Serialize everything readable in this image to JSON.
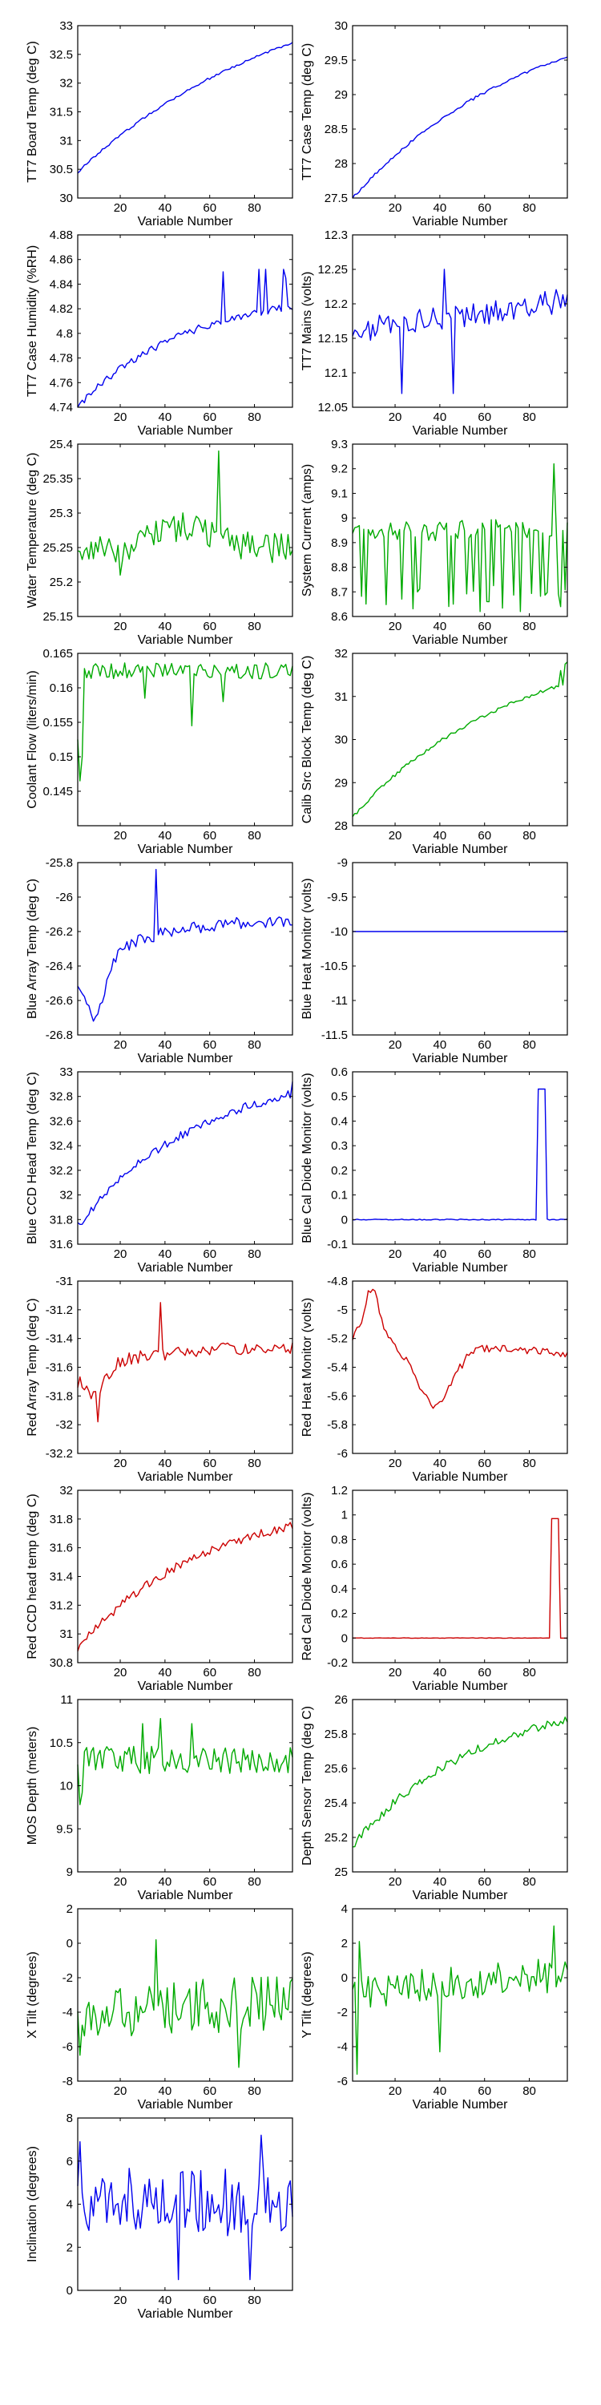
{
  "chart_data": [
    {
      "type": "line",
      "xlabel": "Variable Number",
      "ylabel": "TT7 Board Temp (deg C)",
      "xlim": [
        1,
        97
      ],
      "ylim": [
        30,
        33
      ],
      "xticks": [
        20,
        40,
        60,
        80
      ],
      "yticks": [
        30,
        30.5,
        31,
        31.5,
        32,
        32.5,
        33
      ],
      "series": [
        {
          "color": "#0000ee",
          "shape": "log",
          "start": 30.45,
          "end": 32.7,
          "k": 0.6,
          "noise": 0.02,
          "seed": 1
        }
      ]
    },
    {
      "type": "line",
      "xlabel": "Variable Number",
      "ylabel": "TT7 Case Temp (deg C)",
      "xlim": [
        1,
        97
      ],
      "ylim": [
        27.5,
        30
      ],
      "xticks": [
        20,
        40,
        60,
        80
      ],
      "yticks": [
        27.5,
        28,
        28.5,
        29,
        29.5,
        30
      ],
      "series": [
        {
          "color": "#0000ee",
          "shape": "log",
          "start": 27.5,
          "end": 29.55,
          "k": 0.5,
          "noise": 0.02,
          "seed": 2
        }
      ]
    },
    {
      "type": "line",
      "xlabel": "Variable Number",
      "ylabel": "TT7 Case Humidity (%RH)",
      "xlim": [
        1,
        97
      ],
      "ylim": [
        4.74,
        4.88
      ],
      "xticks": [
        20,
        40,
        60,
        80
      ],
      "yticks": [
        4.74,
        4.76,
        4.78,
        4.8,
        4.82,
        4.84,
        4.86,
        4.88
      ],
      "series": [
        {
          "color": "#0000ee",
          "shape": "log",
          "start": 4.74,
          "end": 4.822,
          "k": 0.3,
          "noise": 0.003,
          "seed": 3,
          "spikes": [
            [
              66,
              4.85
            ],
            [
              82,
              4.852
            ],
            [
              85,
              4.852
            ],
            [
              93,
              4.852
            ],
            [
              94,
              4.845
            ]
          ]
        }
      ]
    },
    {
      "type": "line",
      "xlabel": "Variable Number",
      "ylabel": "TT7 Mains  (volts)",
      "xlim": [
        1,
        97
      ],
      "ylim": [
        12.05,
        12.3
      ],
      "xticks": [
        20,
        40,
        60,
        80
      ],
      "yticks": [
        12.05,
        12.1,
        12.15,
        12.2,
        12.25,
        12.3
      ],
      "series": [
        {
          "color": "#0000ee",
          "shape": "flat",
          "start": 12.16,
          "end": 12.205,
          "k": 0.3,
          "noise": 0.018,
          "seed": 4,
          "spikes": [
            [
              23,
              12.07
            ],
            [
              46,
              12.07
            ],
            [
              42,
              12.25
            ]
          ]
        }
      ]
    },
    {
      "type": "line",
      "xlabel": "Variable Number",
      "ylabel": "Water Temperature (deg C)",
      "xlim": [
        1,
        97
      ],
      "ylim": [
        25.15,
        25.4
      ],
      "xticks": [
        20,
        40,
        60,
        80
      ],
      "yticks": [
        25.15,
        25.2,
        25.25,
        25.3,
        25.35,
        25.4
      ],
      "series": [
        {
          "color": "#00aa00",
          "shape": "hump",
          "start": 25.25,
          "end": 25.26,
          "k": 0.3,
          "noise": 0.022,
          "seed": 5,
          "spikes": [
            [
              64,
              25.39
            ],
            [
              20,
              25.21
            ]
          ]
        }
      ]
    },
    {
      "type": "line",
      "xlabel": "Variable Number",
      "ylabel": "System Current (amps)",
      "xlim": [
        1,
        97
      ],
      "ylim": [
        8.6,
        9.3
      ],
      "xticks": [
        20,
        40,
        60,
        80
      ],
      "yticks": [
        8.6,
        8.7,
        8.8,
        8.9,
        9,
        9.1,
        9.2,
        9.3
      ],
      "series": [
        {
          "color": "#00aa00",
          "shape": "flat",
          "start": 8.94,
          "end": 8.96,
          "k": 0.3,
          "noise": 0.04,
          "seed": 6,
          "drops": true,
          "dropTo": 8.68,
          "spikes": [
            [
              91,
              9.22
            ],
            [
              30,
              8.7
            ],
            [
              46,
              8.65
            ],
            [
              58,
              8.62
            ],
            [
              76,
              8.62
            ],
            [
              94,
              8.64
            ]
          ]
        }
      ]
    },
    {
      "type": "line",
      "xlabel": "Variable Number",
      "ylabel": "Coolant Flow (liters/min)",
      "xlim": [
        1,
        97
      ],
      "ylim": [
        0.14,
        0.165
      ],
      "xticks": [
        20,
        40,
        60,
        80
      ],
      "yticks": [
        0.145,
        0.15,
        0.155,
        0.16,
        0.165
      ],
      "series": [
        {
          "color": "#00aa00",
          "shape": "flat",
          "start": 0.1625,
          "end": 0.1625,
          "k": 0.3,
          "noise": 0.0012,
          "seed": 7,
          "spikes": [
            [
              1,
              0.1525
            ],
            [
              2,
              0.1465
            ],
            [
              3,
              0.15
            ],
            [
              52,
              0.1545
            ],
            [
              31,
              0.1585
            ],
            [
              66,
              0.158
            ]
          ]
        }
      ]
    },
    {
      "type": "line",
      "xlabel": "Variable Number",
      "ylabel": "Calib Src Block Temp (deg C)",
      "xlim": [
        1,
        97
      ],
      "ylim": [
        28,
        32
      ],
      "xticks": [
        20,
        40,
        60,
        80
      ],
      "yticks": [
        28,
        29,
        30,
        31,
        32
      ],
      "series": [
        {
          "color": "#00aa00",
          "shape": "log",
          "start": 28.2,
          "end": 31.3,
          "k": 0.45,
          "noise": 0.04,
          "seed": 8,
          "spikes": [
            [
              94,
              31.6
            ],
            [
              96,
              31.75
            ],
            [
              97,
              31.8
            ]
          ]
        }
      ]
    },
    {
      "type": "line",
      "xlabel": "Variable Number",
      "ylabel": "Blue Array Temp (deg C)",
      "xlim": [
        1,
        97
      ],
      "ylim": [
        -26.8,
        -25.8
      ],
      "xticks": [
        20,
        40,
        60,
        80
      ],
      "yticks": [
        -26.8,
        -26.6,
        -26.4,
        -26.2,
        -26,
        -25.8
      ],
      "series": [
        {
          "color": "#0000ee",
          "shape": "dip",
          "start": -26.45,
          "end": -26.2,
          "k": 0.3,
          "noise": 0.035,
          "seed": 9,
          "spikes": [
            [
              8,
              -26.72
            ],
            [
              36,
              -25.84
            ]
          ]
        }
      ]
    },
    {
      "type": "line",
      "xlabel": "Variable Number",
      "ylabel": "Blue Heat Monitor (volts)",
      "xlim": [
        1,
        97
      ],
      "ylim": [
        -11.5,
        -9
      ],
      "xticks": [
        20,
        40,
        60,
        80
      ],
      "yticks": [
        -11.5,
        -11,
        -10.5,
        -10,
        -9.5,
        -9
      ],
      "series": [
        {
          "color": "#0000ee",
          "shape": "flat",
          "start": -10,
          "end": -10,
          "k": 0,
          "noise": 0,
          "seed": 10
        }
      ]
    },
    {
      "type": "line",
      "xlabel": "Variable Number",
      "ylabel": "Blue CCD Head Temp (deg C)",
      "xlim": [
        1,
        97
      ],
      "ylim": [
        31.6,
        33
      ],
      "xticks": [
        20,
        40,
        60,
        80
      ],
      "yticks": [
        31.6,
        31.8,
        32,
        32.2,
        32.4,
        32.6,
        32.8,
        33
      ],
      "series": [
        {
          "color": "#0000ee",
          "shape": "log",
          "start": 31.75,
          "end": 32.82,
          "k": 0.35,
          "noise": 0.035,
          "seed": 11,
          "spikes": [
            [
              97,
              32.92
            ]
          ]
        }
      ]
    },
    {
      "type": "line",
      "xlabel": "Variable Number",
      "ylabel": "Blue Cal Diode Monitor (volts)",
      "xlim": [
        1,
        97
      ],
      "ylim": [
        -0.1,
        0.6
      ],
      "xticks": [
        20,
        40,
        60,
        80
      ],
      "yticks": [
        -0.1,
        0,
        0.1,
        0.2,
        0.3,
        0.4,
        0.5,
        0.6
      ],
      "series": [
        {
          "color": "#0000ee",
          "shape": "pulse",
          "start": 0,
          "end": 0,
          "k": 0,
          "noise": 0.002,
          "seed": 12,
          "pulse": [
            84,
            87,
            0.53
          ]
        }
      ]
    },
    {
      "type": "line",
      "xlabel": "Variable Number",
      "ylabel": "Red Array Temp (deg C)",
      "xlim": [
        1,
        97
      ],
      "ylim": [
        -32.2,
        -31
      ],
      "xticks": [
        20,
        40,
        60,
        80
      ],
      "yticks": [
        -32.2,
        -32,
        -31.8,
        -31.6,
        -31.4,
        -31.2,
        -31
      ],
      "series": [
        {
          "color": "#cc0000",
          "shape": "dip",
          "start": -31.65,
          "end": -31.5,
          "k": 0.3,
          "noise": 0.045,
          "seed": 13,
          "spikes": [
            [
              10,
              -31.98
            ],
            [
              38,
              -31.15
            ]
          ]
        }
      ]
    },
    {
      "type": "line",
      "xlabel": "Variable Number",
      "ylabel": "Red Heat Monitor (volts)",
      "xlim": [
        1,
        97
      ],
      "ylim": [
        -6,
        -4.8
      ],
      "xticks": [
        20,
        40,
        60,
        80
      ],
      "yticks": [
        -6,
        -5.8,
        -5.6,
        -5.4,
        -5.2,
        -5,
        -4.8
      ],
      "series": [
        {
          "color": "#cc0000",
          "shape": "redheat",
          "start": -5.2,
          "end": -5.3,
          "k": 0.3,
          "noise": 0.03,
          "seed": 14
        }
      ]
    },
    {
      "type": "line",
      "xlabel": "Variable Number",
      "ylabel": "Red CCD head temp (deg C)",
      "xlim": [
        1,
        97
      ],
      "ylim": [
        30.8,
        32
      ],
      "xticks": [
        20,
        40,
        60,
        80
      ],
      "yticks": [
        30.8,
        31,
        31.2,
        31.4,
        31.6,
        31.8,
        32
      ],
      "series": [
        {
          "color": "#cc0000",
          "shape": "log",
          "start": 30.9,
          "end": 31.75,
          "k": 0.35,
          "noise": 0.03,
          "seed": 15
        }
      ]
    },
    {
      "type": "line",
      "xlabel": "Variable Number",
      "ylabel": "Red Cal Diode Monitor (volts)",
      "xlim": [
        1,
        97
      ],
      "ylim": [
        -0.2,
        1.2
      ],
      "xticks": [
        20,
        40,
        60,
        80
      ],
      "yticks": [
        -0.2,
        0,
        0.2,
        0.4,
        0.6,
        0.8,
        1,
        1.2
      ],
      "series": [
        {
          "color": "#cc0000",
          "shape": "pulse",
          "start": 0,
          "end": 0,
          "k": 0,
          "noise": 0.002,
          "seed": 16,
          "pulse": [
            90,
            93,
            0.97
          ]
        }
      ]
    },
    {
      "type": "line",
      "xlabel": "Variable Number",
      "ylabel": "MOS Depth   (meters)",
      "xlim": [
        1,
        97
      ],
      "ylim": [
        9,
        11
      ],
      "xticks": [
        20,
        40,
        60,
        80
      ],
      "yticks": [
        9,
        9.5,
        10,
        10.5,
        11
      ],
      "series": [
        {
          "color": "#00aa00",
          "shape": "flat",
          "start": 10.3,
          "end": 10.3,
          "k": 0.3,
          "noise": 0.16,
          "seed": 17,
          "spikes": [
            [
              2,
              9.78
            ],
            [
              3,
              9.92
            ],
            [
              30,
              10.72
            ],
            [
              38,
              10.78
            ],
            [
              52,
              10.72
            ]
          ]
        }
      ]
    },
    {
      "type": "line",
      "xlabel": "Variable Number",
      "ylabel": "Depth Sensor Temp (deg C)",
      "xlim": [
        1,
        97
      ],
      "ylim": [
        25,
        26
      ],
      "xticks": [
        20,
        40,
        60,
        80
      ],
      "yticks": [
        25,
        25.2,
        25.4,
        25.6,
        25.8,
        26
      ],
      "series": [
        {
          "color": "#00aa00",
          "shape": "log",
          "start": 25.15,
          "end": 25.88,
          "k": 0.35,
          "noise": 0.025,
          "seed": 18
        }
      ]
    },
    {
      "type": "line",
      "xlabel": "Variable Number",
      "ylabel": "X Tilt  (degrees)",
      "xlim": [
        1,
        97
      ],
      "ylim": [
        -8,
        2
      ],
      "xticks": [
        20,
        40,
        60,
        80
      ],
      "yticks": [
        -8,
        -6,
        -4,
        -2,
        0,
        2
      ],
      "series": [
        {
          "color": "#00aa00",
          "shape": "flat",
          "start": -3.9,
          "end": -3.5,
          "k": 0.3,
          "noise": 1.6,
          "seed": 19,
          "spikes": [
            [
              2,
              -6.5
            ],
            [
              73,
              -7.2
            ],
            [
              36,
              0.2
            ]
          ]
        }
      ]
    },
    {
      "type": "line",
      "xlabel": "Variable Number",
      "ylabel": "Y Tilt  (degrees)",
      "xlim": [
        1,
        97
      ],
      "ylim": [
        -6,
        4
      ],
      "xticks": [
        20,
        40,
        60,
        80
      ],
      "yticks": [
        -6,
        -4,
        -2,
        0,
        2,
        4
      ],
      "series": [
        {
          "color": "#00aa00",
          "shape": "flat",
          "start": -0.8,
          "end": 0.2,
          "k": 0.3,
          "noise": 1.0,
          "seed": 20,
          "spikes": [
            [
              3,
              -5.6
            ],
            [
              4,
              2.1
            ],
            [
              91,
              3.0
            ],
            [
              40,
              -4.3
            ]
          ]
        }
      ]
    },
    {
      "type": "line",
      "xlabel": "Variable Number",
      "ylabel": "Inclination  (degrees)",
      "xlim": [
        1,
        97
      ],
      "ylim": [
        0,
        8
      ],
      "xticks": [
        20,
        40,
        60,
        80
      ],
      "yticks": [
        0,
        2,
        4,
        6,
        8
      ],
      "series": [
        {
          "color": "#0000ee",
          "shape": "flat",
          "start": 4.4,
          "end": 4.0,
          "k": 0.3,
          "noise": 1.6,
          "seed": 21,
          "spikes": [
            [
              2,
              6.9
            ],
            [
              46,
              0.5
            ],
            [
              83,
              7.2
            ],
            [
              78,
              0.5
            ]
          ]
        }
      ]
    }
  ]
}
